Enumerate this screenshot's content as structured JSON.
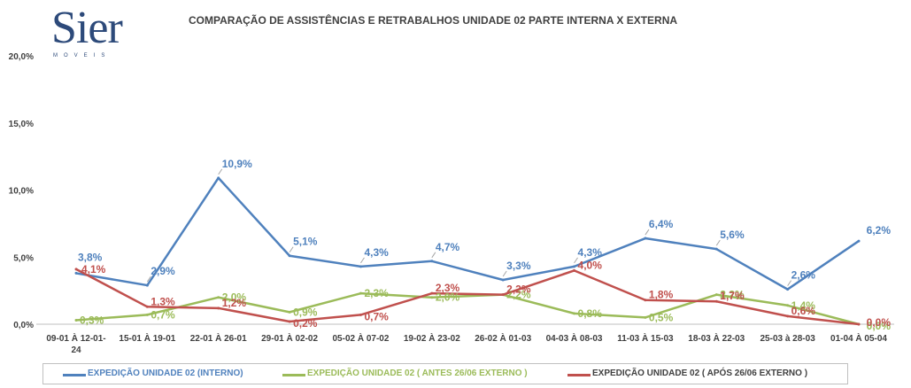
{
  "logo": {
    "word": "Sier",
    "sub": "MOVEIS"
  },
  "chart_data": {
    "type": "line",
    "title": "COMPARAÇÃO DE ASSISTÊNCIAS E RETRABALHOS UNIDADE 02 PARTE INTERNA X EXTERNA",
    "xlabel": "",
    "ylabel": "",
    "categories": [
      [
        "09-01 À 12-01-",
        "24"
      ],
      [
        "15-01 À 19-01"
      ],
      [
        "22-01 À 26-01"
      ],
      [
        "29-01 À 02-02"
      ],
      [
        "05-02 À 07-02"
      ],
      [
        "19-02 À 23-02"
      ],
      [
        "26-02 À 01-03"
      ],
      [
        "04-03 À 08-03"
      ],
      [
        "11-03 À 15-03"
      ],
      [
        "18-03 À 22-03"
      ],
      [
        "25-03 à 28-03"
      ],
      [
        "01-04 À 05-04"
      ]
    ],
    "ylim": [
      0,
      20
    ],
    "yticks": [
      "0,0%",
      "5,0%",
      "10,0%",
      "15,0%",
      "20,0%"
    ],
    "grid": false,
    "legend_position": "bottom",
    "series": [
      {
        "name": "EXPEDIÇÃO UNIDADE 02 (INTERNO)",
        "color": "#4f81bd",
        "values": [
          3.8,
          2.9,
          10.9,
          5.1,
          4.3,
          4.7,
          3.3,
          4.3,
          6.4,
          5.6,
          2.6,
          6.2
        ],
        "labels": [
          "3,8%",
          "2,9%",
          "10,9%",
          "5,1%",
          "4,3%",
          "4,7%",
          "3,3%",
          "4,3%",
          "6,4%",
          "5,6%",
          "2,6%",
          "6,2%"
        ]
      },
      {
        "name": "EXPEDIÇÃO UNIDADE 02 ( ANTES 26/06 EXTERNO )",
        "color": "#9bbb59",
        "values": [
          0.3,
          0.7,
          2.0,
          0.9,
          2.3,
          2.0,
          2.2,
          0.8,
          0.5,
          2.2,
          1.4,
          0.0
        ],
        "labels": [
          "0,3%",
          "0,7%",
          "2,0%",
          "0,9%",
          "2,3%",
          "2,0%",
          "2,2%",
          "0,8%",
          "0,5%",
          "2,2%",
          "1,4%",
          "0,0%"
        ]
      },
      {
        "name": "EXPEDIÇÃO UNIDADE 02 ( APÓS 26/06 EXTERNO )",
        "color": "#c0504d",
        "values": [
          4.1,
          1.3,
          1.2,
          0.2,
          0.7,
          2.3,
          2.2,
          4.0,
          1.8,
          1.7,
          0.6,
          0.0
        ],
        "labels": [
          "4,1%",
          "1,3%",
          "1,2%",
          "0,2%",
          "0,7%",
          "2,3%",
          "2,2%",
          "4,0%",
          "1,8%",
          "1,7%",
          "0,6%",
          "0,0%"
        ]
      }
    ]
  }
}
